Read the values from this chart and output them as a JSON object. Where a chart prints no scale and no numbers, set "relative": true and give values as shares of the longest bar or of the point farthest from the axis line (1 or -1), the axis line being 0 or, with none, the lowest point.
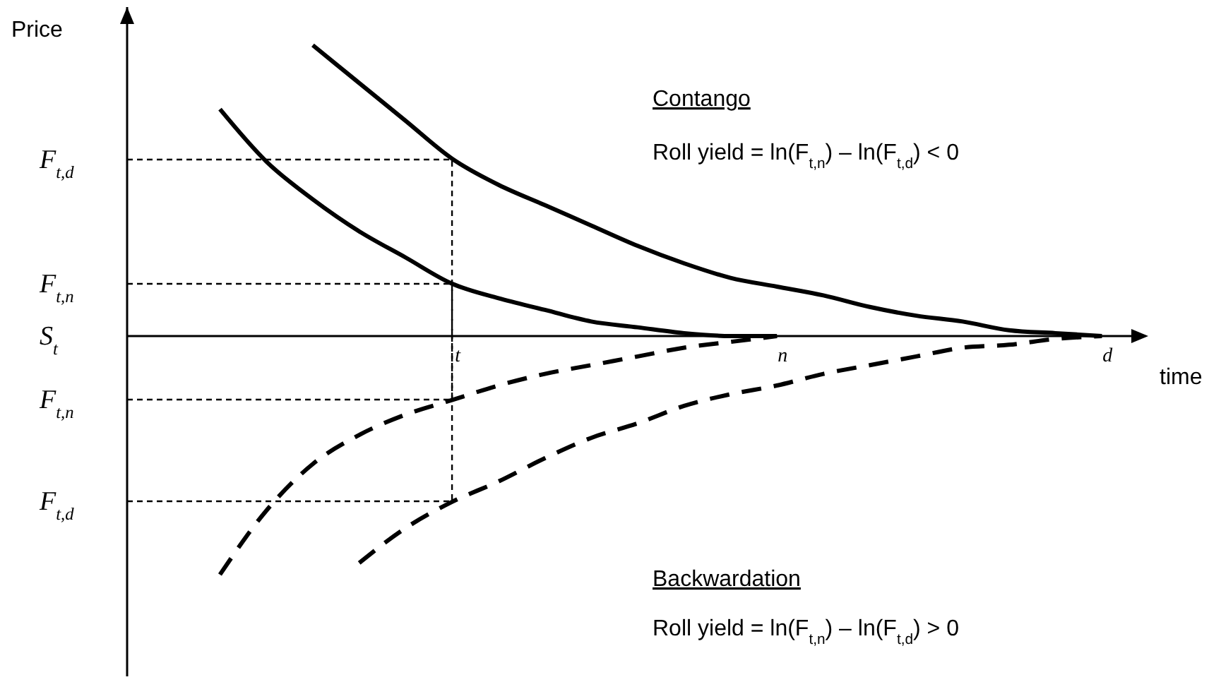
{
  "chart_data": {
    "type": "line",
    "relative": true,
    "ylabel": "Price",
    "xlabel": "time",
    "marker": "none",
    "categories": [
      null,
      null,
      null,
      null,
      null,
      null,
      null,
      "t",
      null,
      null,
      null,
      null,
      null,
      null,
      "n",
      null,
      null,
      null,
      null,
      null,
      null,
      "d",
      null
    ],
    "annotations": [
      "Contango",
      "Roll yield = ln(F$_{t,n}$) – ln(F$_{t,d}$) < 0",
      "Backwardation",
      "Roll yield = ln(F$_{t,n}$) – ln(F$_{t,d}$) > 0",
      "F$_{t,d}$",
      "F$_{t,n}$",
      "S$_{t}$",
      "F$_{t,n}$",
      "F$_{t,d}$"
    ],
    "series": [
      {
        "color": "#000000",
        "line_style": "solid",
        "values": [
          null,
          null,
          0.78,
          0.6,
          0.47,
          0.36,
          0.27,
          0.18,
          0.13,
          0.09,
          0.05,
          0.03,
          0.01,
          0,
          0,
          null,
          null,
          null,
          null,
          null,
          null,
          null,
          null
        ]
      },
      {
        "color": "#000000",
        "line_style": "solid",
        "values": [
          null,
          null,
          null,
          null,
          1,
          0.87,
          0.74,
          0.61,
          0.52,
          0.45,
          0.38,
          0.31,
          0.25,
          0.2,
          0.17,
          0.14,
          0.1,
          0.07,
          0.05,
          0.02,
          0.01,
          0,
          null
        ]
      },
      {
        "color": "#000000",
        "line_style": "dashed",
        "values": [
          null,
          null,
          -0.82,
          -0.6,
          -0.44,
          -0.34,
          -0.27,
          -0.22,
          -0.17,
          -0.13,
          -0.1,
          -0.07,
          -0.04,
          -0.02,
          0,
          null,
          null,
          null,
          null,
          null,
          null,
          null,
          null
        ]
      },
      {
        "color": "#000000",
        "line_style": "dashed",
        "values": [
          null,
          null,
          null,
          null,
          null,
          -0.78,
          -0.66,
          -0.57,
          -0.5,
          -0.42,
          -0.35,
          -0.3,
          -0.24,
          -0.2,
          -0.17,
          -0.13,
          -0.1,
          -0.07,
          -0.04,
          -0.03,
          -0.01,
          0,
          null
        ]
      }
    ]
  }
}
